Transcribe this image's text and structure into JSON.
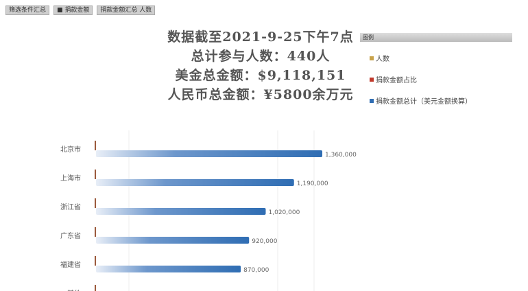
{
  "toolbar": {
    "chips": [
      "筛选条件汇总",
      "■ 捐款金额",
      "捐款金额汇总 人数"
    ]
  },
  "header": {
    "lines": [
      "数据截至2021-9-25下午7点",
      "总计参与人数：440人",
      "美金总金额：$9,118,151",
      "人民币总金额：¥5800余万元"
    ]
  },
  "legend": {
    "title": "图例",
    "items": [
      {
        "label": "人数",
        "color": "#c8a24a"
      },
      {
        "label": "捐款金额占比",
        "color": "#c0392b"
      },
      {
        "label": "捐款金额总计（美元金额换算）",
        "color": "#2f6db3"
      }
    ]
  },
  "chart_data": {
    "type": "bar",
    "orientation": "horizontal",
    "categories": [
      "北京市",
      "上海市",
      "浙江省",
      "广东省",
      "福建省",
      "其他"
    ],
    "series": [
      {
        "name": "捐款金额总计（美元金额换算）",
        "values": [
          1360000,
          1190000,
          1020000,
          920000,
          870000,
          null
        ]
      }
    ],
    "value_labels": [
      "1,360,000",
      "1,190,000",
      "1,020,000",
      "920,000",
      "870,000",
      ""
    ],
    "grid": true,
    "legend_position": "top-right",
    "bar_color": "#2f6db3"
  }
}
